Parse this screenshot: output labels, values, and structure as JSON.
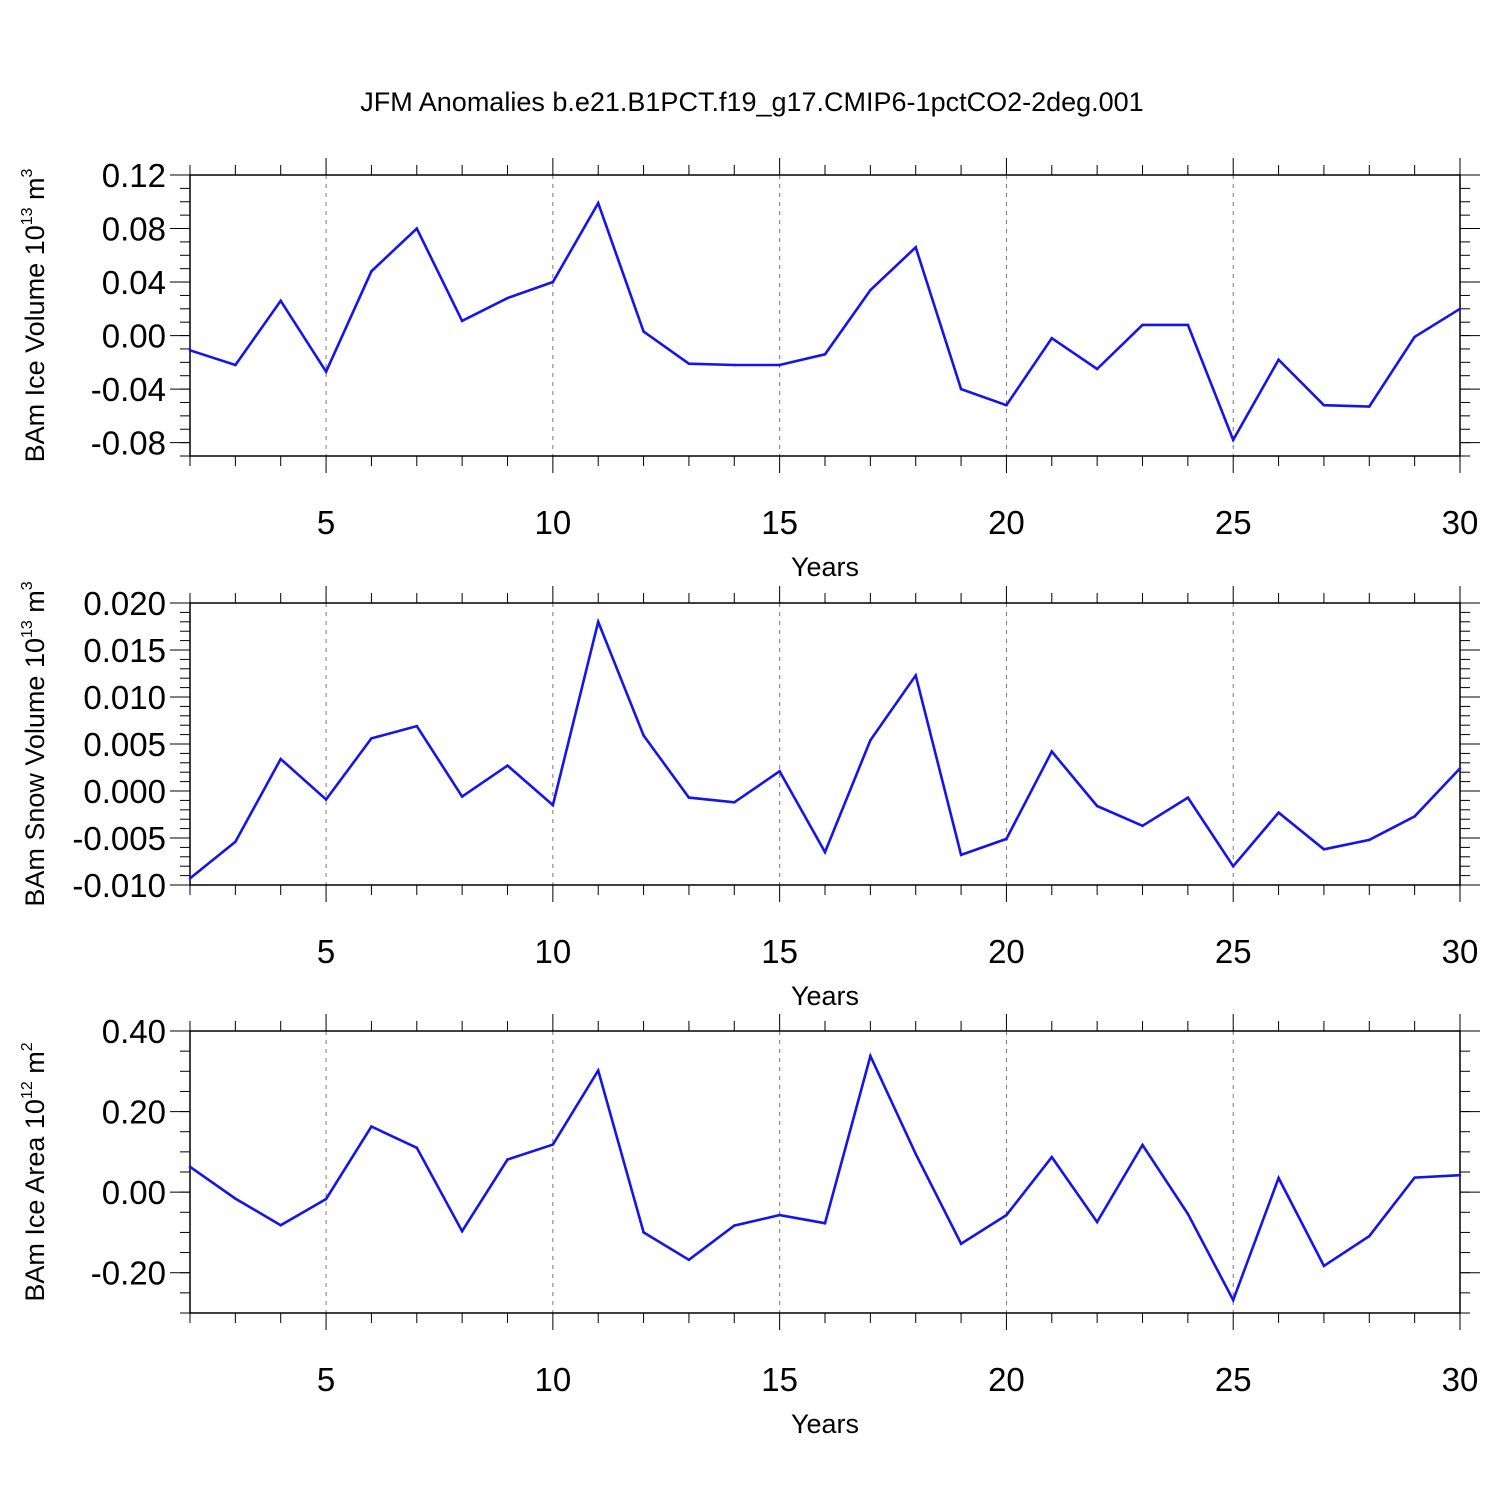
{
  "title": "JFM Anomalies b.e21.B1PCT.f19_g17.CMIP6-1pctCO2-2deg.001",
  "chart_data": [
    {
      "type": "line",
      "xlabel": "Years",
      "ylabel": {
        "prefix": "BAm Ice Volume 10",
        "exp": "13",
        "unit": " m",
        "unit_exp": "3"
      },
      "xlim": [
        2,
        30
      ],
      "ylim": [
        -0.09,
        0.12
      ],
      "xticks": [
        5,
        10,
        15,
        20,
        25,
        30
      ],
      "xtick_labels": [
        "5",
        "10",
        "15",
        "20",
        "25",
        "30"
      ],
      "yticks": [
        -0.08,
        -0.04,
        0.0,
        0.04,
        0.08,
        0.12
      ],
      "ytick_labels": [
        "-0.08",
        "-0.04",
        "0.00",
        "0.04",
        "0.08",
        "0.12"
      ],
      "yminor_step": 0.01,
      "grid": "vertical dashed at major x ticks",
      "line_color": "#1414ee",
      "x": [
        2,
        3,
        4,
        5,
        6,
        7,
        8,
        9,
        10,
        11,
        12,
        13,
        14,
        15,
        16,
        17,
        18,
        19,
        20,
        21,
        22,
        23,
        24,
        25,
        26,
        27,
        28,
        29,
        30
      ],
      "values": [
        -0.011,
        -0.022,
        0.026,
        -0.027,
        0.048,
        0.08,
        0.011,
        0.028,
        0.04,
        0.099,
        0.003,
        -0.021,
        -0.022,
        -0.022,
        -0.014,
        0.034,
        0.066,
        -0.04,
        -0.052,
        -0.002,
        -0.025,
        0.008,
        0.008,
        -0.078,
        -0.018,
        -0.052,
        -0.053,
        -0.001,
        0.02
      ]
    },
    {
      "type": "line",
      "xlabel": "Years",
      "ylabel": {
        "prefix": "BAm Snow Volume 10",
        "exp": "13",
        "unit": " m",
        "unit_exp": "3"
      },
      "xlim": [
        2,
        30
      ],
      "ylim": [
        -0.01,
        0.02
      ],
      "xticks": [
        5,
        10,
        15,
        20,
        25,
        30
      ],
      "xtick_labels": [
        "5",
        "10",
        "15",
        "20",
        "25",
        "30"
      ],
      "yticks": [
        -0.01,
        -0.005,
        0.0,
        0.005,
        0.01,
        0.015,
        0.02
      ],
      "ytick_labels": [
        "-0.010",
        "-0.005",
        "0.000",
        "0.005",
        "0.010",
        "0.015",
        "0.020"
      ],
      "yminor_step": 0.001,
      "grid": "vertical dashed at major x ticks",
      "line_color": "#1414ee",
      "x": [
        2,
        3,
        4,
        5,
        6,
        7,
        8,
        9,
        10,
        11,
        12,
        13,
        14,
        15,
        16,
        17,
        18,
        19,
        20,
        21,
        22,
        23,
        24,
        25,
        26,
        27,
        28,
        29,
        30
      ],
      "values": [
        -0.0093,
        -0.0054,
        0.0034,
        -0.0009,
        0.0056,
        0.0069,
        -0.0006,
        0.0027,
        -0.0015,
        0.018,
        0.0059,
        -0.0007,
        -0.0012,
        0.0021,
        -0.0065,
        0.0054,
        0.0123,
        -0.0068,
        -0.0051,
        0.0042,
        -0.0016,
        -0.0037,
        -0.0007,
        -0.008,
        -0.0023,
        -0.0062,
        -0.0052,
        -0.0027,
        0.0024
      ]
    },
    {
      "type": "line",
      "xlabel": "Years",
      "ylabel": {
        "prefix": "BAm Ice Area 10",
        "exp": "12",
        "unit": " m",
        "unit_exp": "2"
      },
      "xlim": [
        2,
        30
      ],
      "ylim": [
        -0.3,
        0.4
      ],
      "xticks": [
        5,
        10,
        15,
        20,
        25,
        30
      ],
      "xtick_labels": [
        "5",
        "10",
        "15",
        "20",
        "25",
        "30"
      ],
      "yticks": [
        -0.2,
        0.0,
        0.2,
        0.4
      ],
      "ytick_labels": [
        "-0.20",
        "0.00",
        "0.20",
        "0.40"
      ],
      "yminor_step": 0.05,
      "grid": "vertical dashed at major x ticks",
      "line_color": "#1414ee",
      "x": [
        2,
        3,
        4,
        5,
        6,
        7,
        8,
        9,
        10,
        11,
        12,
        13,
        14,
        15,
        16,
        17,
        18,
        19,
        20,
        21,
        22,
        23,
        24,
        25,
        26,
        27,
        28,
        29,
        30
      ],
      "values": [
        0.063,
        -0.016,
        -0.082,
        -0.017,
        0.163,
        0.11,
        -0.097,
        0.081,
        0.118,
        0.302,
        -0.1,
        -0.168,
        -0.083,
        -0.057,
        -0.077,
        0.338,
        0.095,
        -0.128,
        -0.057,
        0.087,
        -0.074,
        0.117,
        -0.054,
        -0.268,
        0.035,
        -0.183,
        -0.109,
        0.036,
        0.042
      ]
    }
  ]
}
